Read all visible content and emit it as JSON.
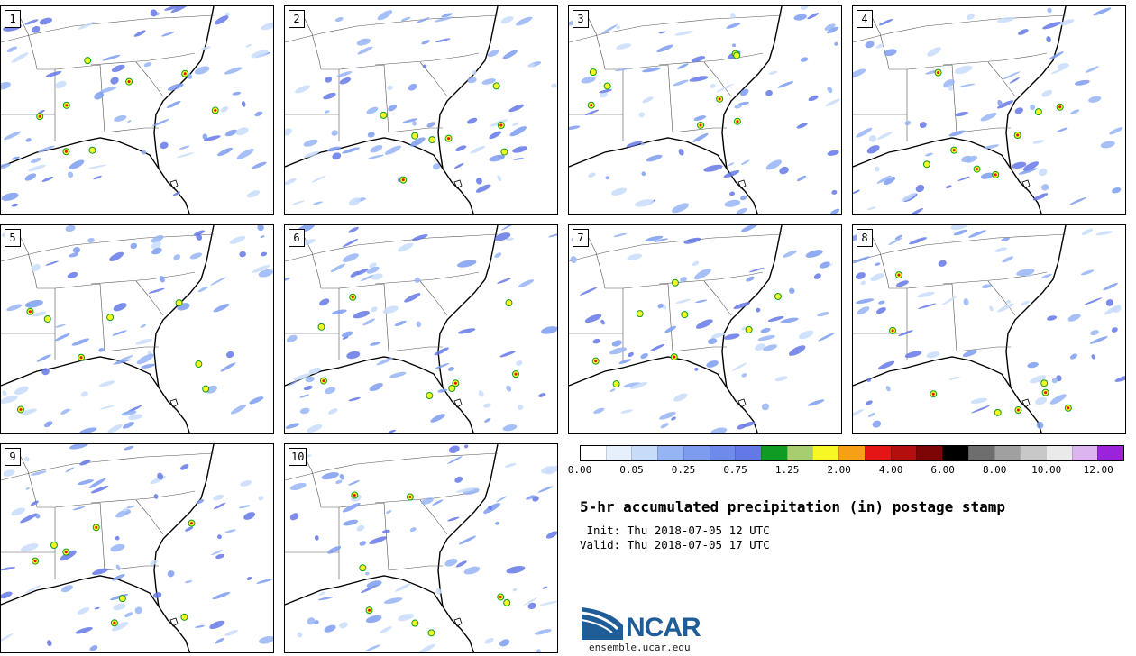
{
  "panels": [
    {
      "label": "1"
    },
    {
      "label": "2"
    },
    {
      "label": "3"
    },
    {
      "label": "4"
    },
    {
      "label": "5"
    },
    {
      "label": "6"
    },
    {
      "label": "7"
    },
    {
      "label": "8"
    },
    {
      "label": "9"
    },
    {
      "label": "10"
    }
  ],
  "colorbar": {
    "colors": [
      "#ffffff",
      "#e6f0fc",
      "#c8dcfa",
      "#96b4f4",
      "#7d9cf0",
      "#6e8aeb",
      "#6478e6",
      "#0f9b24",
      "#a8cd6e",
      "#f7f725",
      "#f7a016",
      "#e61515",
      "#b40f0f",
      "#7d0505",
      "#000000",
      "#6e6e6e",
      "#a0a0a0",
      "#c8c8c8",
      "#eaeaea",
      "#dcb4f0",
      "#9b23dc"
    ],
    "tick_labels": [
      "0.00",
      "0.05",
      "0.25",
      "0.75",
      "1.25",
      "2.00",
      "4.00",
      "6.00",
      "8.00",
      "10.00",
      "12.00"
    ]
  },
  "title": "5-hr accumulated precipitation (in) postage stamp",
  "init_line": " Init: Thu 2018-07-05 12 UTC",
  "valid_line": "Valid: Thu 2018-07-05 17 UTC",
  "logo": {
    "text": "NCAR",
    "url": "ensemble.ucar.edu",
    "brand_color": "#1f5d99"
  }
}
